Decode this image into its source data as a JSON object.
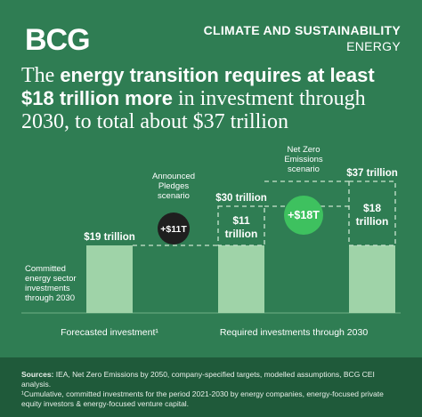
{
  "brand": {
    "logo_text": "BCG"
  },
  "header": {
    "title": "CLIMATE AND SUSTAINABILITY",
    "subtitle": "ENERGY"
  },
  "headline": {
    "part1": "The ",
    "bold1": "energy transition requires at least $18 trillion more",
    "part2": " in investment through 2030, to total about $37 trillion"
  },
  "chart_data": {
    "type": "bar",
    "unit": "trillion USD",
    "bars": [
      {
        "id": "forecasted",
        "value": 19,
        "label": "$19 trillion"
      },
      {
        "id": "announced",
        "base": 19,
        "increment": 11,
        "total": 30,
        "label": "$30 trillion",
        "increment_label_line1": "$11",
        "increment_label_line2": "trillion"
      },
      {
        "id": "net_zero",
        "base": 19,
        "increment": 18,
        "total": 37,
        "label": "$37 trillion",
        "increment_label_line1": "$18",
        "increment_label_line2": "trillion"
      }
    ],
    "bubbles": [
      {
        "text": "+$11T",
        "color": "#1f1f1f",
        "caption_lines": [
          "Announced",
          "Pledges",
          "scenario"
        ]
      },
      {
        "text": "+$18T",
        "color": "#3ec15f",
        "caption_lines": [
          "Net Zero",
          "Emissions",
          "scenario"
        ]
      }
    ],
    "base_annotation": [
      "Committed",
      "energy sector",
      "investments",
      "through 2030"
    ],
    "xlabels": [
      "Forecasted investment¹",
      "Required investments through 2030"
    ],
    "colors": {
      "bar": "#9fd3a8",
      "dashed": "#c9e4cf"
    }
  },
  "sources": {
    "label": "Sources:",
    "text": " IEA, Net Zero Emissions by 2050, company-specified targets, modelled assumptions, BCG CEI analysis.",
    "footnote": "¹Cumulative, committed investments for the period 2021-2030 by energy companies, energy-focused private equity investors & energy-focused venture capital."
  }
}
